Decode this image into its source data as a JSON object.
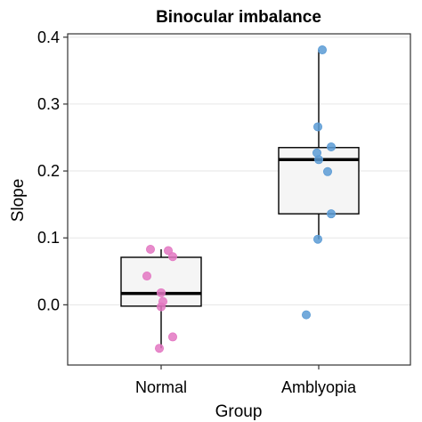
{
  "chart_data": {
    "type": "box",
    "title": "Binocular imbalance",
    "xlabel": "Group",
    "ylabel": "Slope",
    "ylim": [
      -0.09,
      0.405
    ],
    "yticks": [
      0.0,
      0.1,
      0.2,
      0.3,
      0.4
    ],
    "ytick_labels": [
      "0.0",
      "0.1",
      "0.2",
      "0.3",
      "0.4"
    ],
    "categories": [
      "Normal",
      "Amblyopia"
    ],
    "grid": "horizontal major",
    "legend": "none",
    "groups": [
      {
        "category": "Normal",
        "color": "#e377c2",
        "box": {
          "whisker_low": -0.065,
          "q1": -0.002,
          "median": 0.017,
          "q3": 0.071,
          "whisker_high": 0.083
        },
        "points": [
          0.083,
          0.081,
          0.072,
          0.043,
          0.018,
          0.005,
          -0.003,
          -0.048,
          -0.065
        ]
      },
      {
        "category": "Amblyopia",
        "color": "#5b9bd5",
        "box": {
          "whisker_low": 0.098,
          "q1": 0.136,
          "median": 0.217,
          "q3": 0.235,
          "whisker_high": 0.381
        },
        "points": [
          0.381,
          0.266,
          0.236,
          0.227,
          0.217,
          0.199,
          0.136,
          0.098,
          -0.015
        ],
        "outliers": [
          -0.015
        ]
      }
    ]
  }
}
